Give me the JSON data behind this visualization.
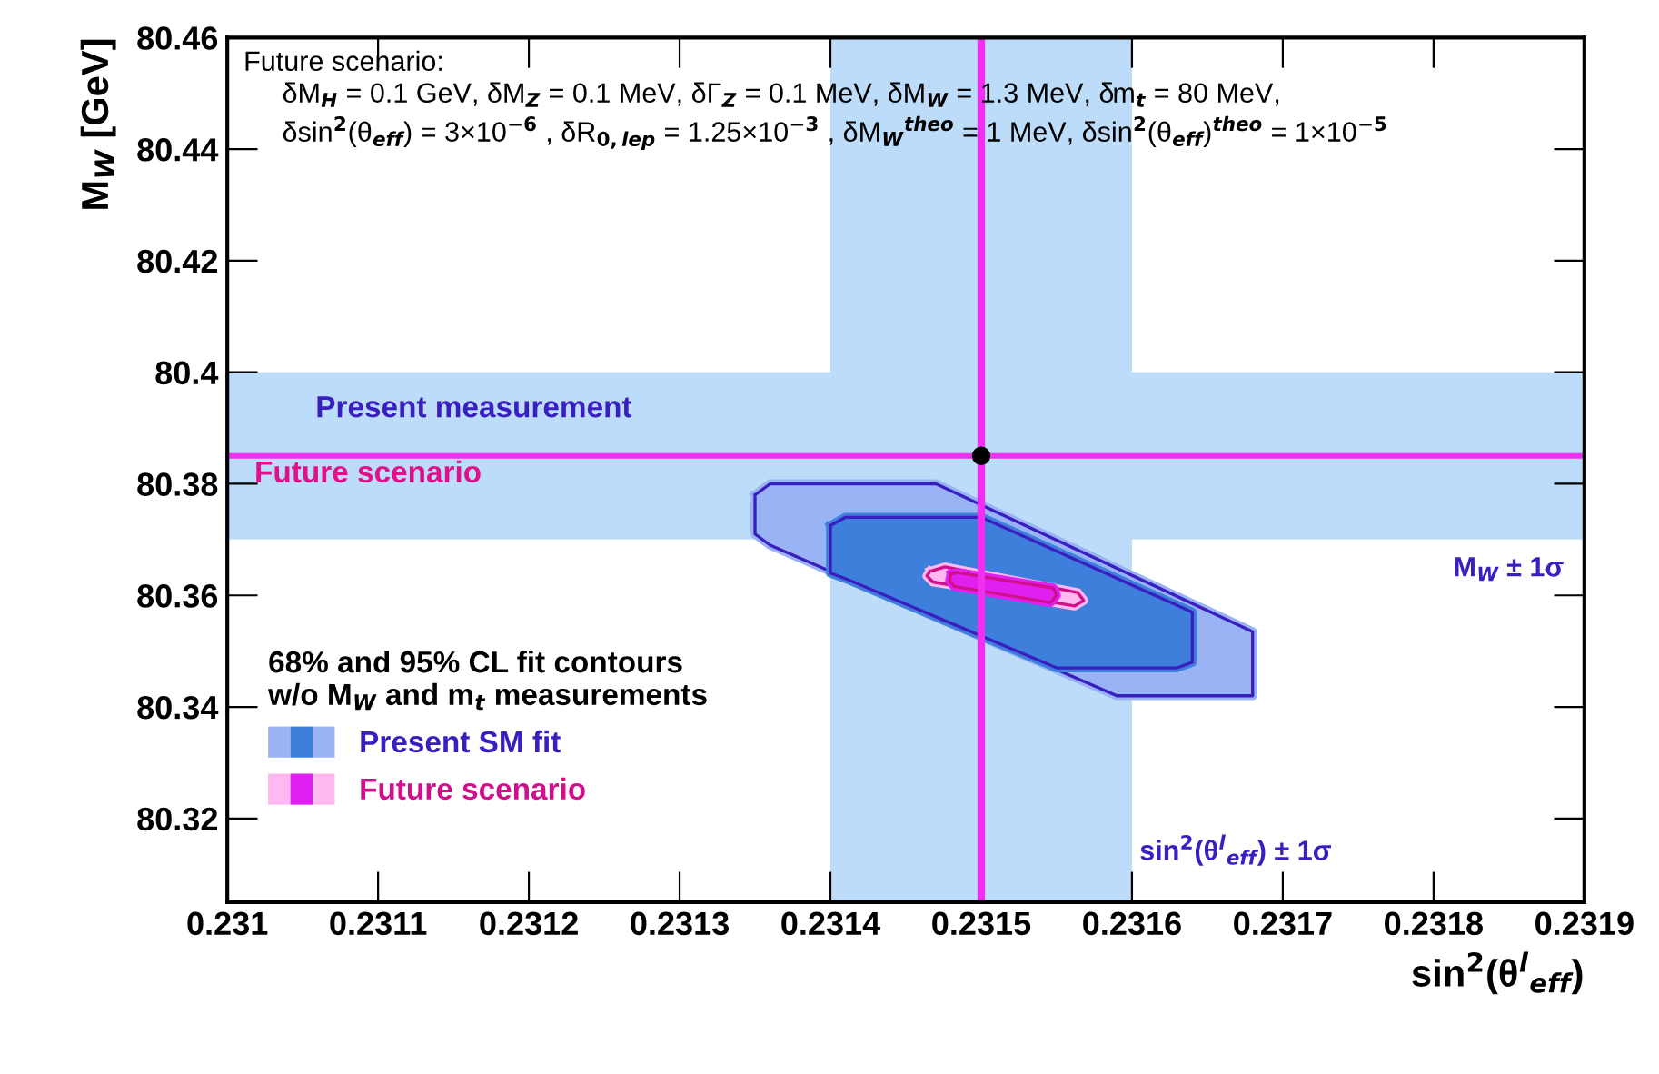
{
  "chart_data": {
    "type": "area",
    "xlabel": "sin$^{2}$(θ$^{l}$$_{eff}$)",
    "ylabel": "M$_{W}$ [GeV]",
    "legend_title": "68% and 95% CL fit contours\nw/o M$_{W}$ and m$_{t}$ measurements",
    "xlim": [
      0.231,
      0.2319
    ],
    "xticks": [
      0.231,
      0.2311,
      0.2312,
      0.2313,
      0.2314,
      0.2315,
      0.2316,
      0.2317,
      0.2318,
      0.2319
    ],
    "ylim": [
      80.305,
      80.46
    ],
    "yticks": [
      80.32,
      80.34,
      80.36,
      80.38,
      80.4,
      80.42,
      80.44,
      80.46
    ],
    "grid": false,
    "legend": "lower left",
    "bands": [
      {
        "axis": "y",
        "from": 80.37,
        "to": 80.4,
        "label": "M$_{W}$ ± 1σ",
        "color": "#bcdcfa"
      },
      {
        "axis": "x",
        "from": 0.2314,
        "to": 0.2316,
        "label": "sin$^{2}$(θ$^{l}$$_{eff}$) ± 1σ",
        "color": "#bcdcfa"
      }
    ],
    "ref_lines": [
      {
        "axis": "y",
        "value": 80.385,
        "label": "Future scenario",
        "color": "#f030f0"
      },
      {
        "axis": "x",
        "value": 0.2315,
        "color": "#f030f0"
      }
    ],
    "series": [
      {
        "color": "#99b3f5",
        "x": [
          0.23135,
          0.23136,
          0.23147,
          0.23168,
          0.23168,
          0.23159,
          0.23136,
          0.23135
        ],
        "values": [
          80.378,
          80.38,
          80.38,
          80.3535,
          80.342,
          80.342,
          80.369,
          80.371
        ]
      },
      {
        "name": "Present SM fit",
        "color": "#3f7fdc",
        "x": [
          0.2314,
          0.23141,
          0.2315,
          0.23164,
          0.23164,
          0.23163,
          0.23155,
          0.23141,
          0.2314
        ],
        "values": [
          80.3725,
          80.374,
          80.374,
          80.357,
          80.348,
          80.347,
          80.347,
          80.363,
          80.364
        ]
      },
      {
        "color": "#ffb8f0",
        "x": [
          0.231466,
          0.231476,
          0.231564,
          0.231568,
          0.231562,
          0.231468,
          0.231464
        ],
        "values": [
          80.3643,
          80.3651,
          80.3605,
          80.3591,
          80.3581,
          80.3624,
          80.3635
        ]
      },
      {
        "name": "Future scenario",
        "color": "#e020f0",
        "x": [
          0.23148,
          0.231484,
          0.231548,
          0.23155,
          0.231546,
          0.231482,
          0.231479
        ],
        "values": [
          80.3638,
          80.3641,
          80.3613,
          80.36,
          80.3587,
          80.3616,
          80.3627
        ]
      },
      {
        "type": "scatter",
        "color": "#000000",
        "marker": "circle",
        "x": [
          0.2315
        ],
        "values": [
          80.385
        ]
      }
    ],
    "annotations": [
      "Future scenario:\n     δM$_{H}$ = 0.1 GeV, δM$_{Z}$ = 0.1 MeV, δΓ$_{Z}$ = 0.1 MeV, δM$_{W}$ = 1.3 MeV, δm$_{t}$ = 80 MeV,\n     δsin$^{2}$(θ$_{eff}$) = 3×10$^{−6}$ , δR$_{0,lep}$ = 1.25×10$^{−3}$ , δM$_{W}$$^{theo}$ = 1 MeV, δsin$^{2}$(θ$_{eff}$)$^{theo}$ = 1×10$^{−5}$",
      "Present measurement"
    ]
  }
}
